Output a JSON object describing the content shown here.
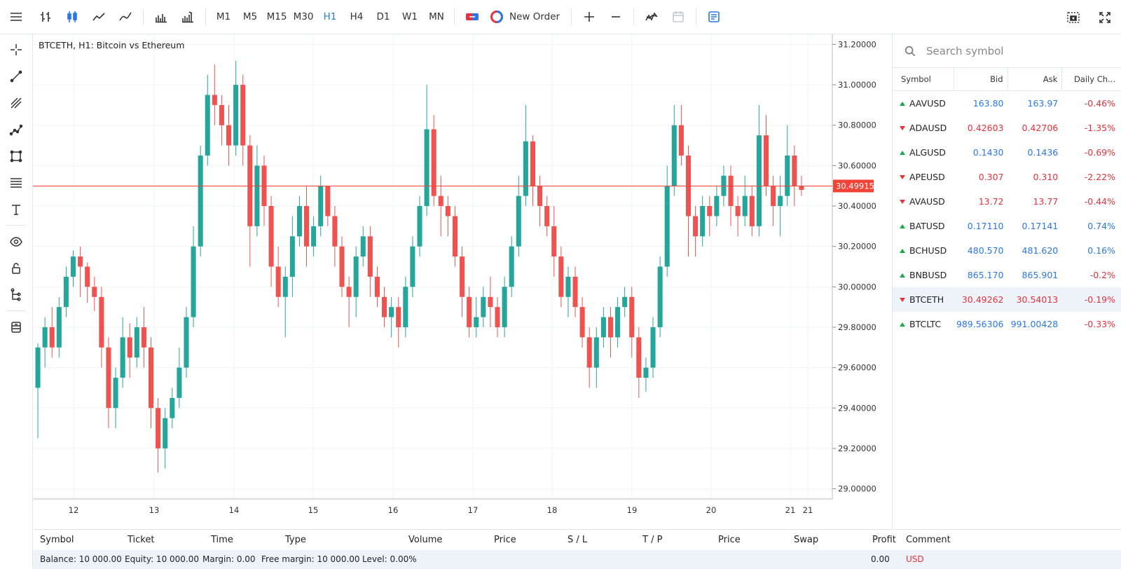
{
  "toolbar": {
    "timeframes": [
      "M1",
      "M5",
      "M15",
      "M30",
      "H1",
      "H4",
      "D1",
      "W1",
      "MN"
    ],
    "active_timeframe": "H1",
    "new_order_label": "New Order"
  },
  "chart": {
    "title": "BTCETH, H1: Bitcoin vs Ethereum",
    "current_price_label": "30.49915",
    "current_price": 30.49915
  },
  "chart_data": {
    "type": "candlestick",
    "title": "BTCETH, H1: Bitcoin vs Ethereum",
    "ylim": [
      28.95,
      31.25
    ],
    "y_ticks": [
      "31.20000",
      "31.00000",
      "30.80000",
      "30.60000",
      "30.40000",
      "30.20000",
      "30.00000",
      "29.80000",
      "29.60000",
      "29.40000",
      "29.20000",
      "29.00000"
    ],
    "x_ticks": [
      "12",
      "13",
      "14",
      "15",
      "16",
      "17",
      "18",
      "19",
      "20",
      "21",
      "21"
    ],
    "current_price": 30.49915,
    "candles": [
      [
        29.5,
        29.7,
        29.25,
        29.72
      ],
      [
        29.7,
        29.8,
        29.6,
        29.85
      ],
      [
        29.8,
        29.7,
        29.65,
        29.9
      ],
      [
        29.7,
        29.9,
        29.65,
        29.95
      ],
      [
        29.9,
        30.05,
        29.85,
        30.1
      ],
      [
        30.05,
        30.15,
        30.0,
        30.18
      ],
      [
        30.15,
        30.1,
        29.95,
        30.2
      ],
      [
        30.1,
        30.0,
        29.92,
        30.12
      ],
      [
        30.0,
        29.95,
        29.88,
        30.05
      ],
      [
        29.95,
        29.7,
        29.6,
        30.0
      ],
      [
        29.7,
        29.4,
        29.3,
        29.75
      ],
      [
        29.4,
        29.55,
        29.3,
        29.6
      ],
      [
        29.55,
        29.75,
        29.5,
        29.85
      ],
      [
        29.75,
        29.65,
        29.55,
        29.82
      ],
      [
        29.65,
        29.8,
        29.6,
        29.85
      ],
      [
        29.8,
        29.7,
        29.6,
        29.9
      ],
      [
        29.7,
        29.4,
        29.3,
        29.75
      ],
      [
        29.4,
        29.2,
        29.08,
        29.45
      ],
      [
        29.2,
        29.35,
        29.1,
        29.4
      ],
      [
        29.35,
        29.45,
        29.3,
        29.5
      ],
      [
        29.45,
        29.6,
        29.4,
        29.7
      ],
      [
        29.6,
        29.85,
        29.55,
        29.9
      ],
      [
        29.85,
        30.2,
        29.8,
        30.3
      ],
      [
        30.2,
        30.65,
        30.15,
        30.7
      ],
      [
        30.65,
        30.95,
        30.6,
        31.05
      ],
      [
        30.95,
        30.9,
        30.8,
        31.1
      ],
      [
        30.9,
        30.8,
        30.7,
        30.95
      ],
      [
        30.8,
        30.7,
        30.6,
        30.9
      ],
      [
        30.7,
        31.0,
        30.65,
        31.12
      ],
      [
        31.0,
        30.7,
        30.6,
        31.05
      ],
      [
        30.7,
        30.3,
        30.1,
        30.75
      ],
      [
        30.3,
        30.6,
        30.25,
        30.7
      ],
      [
        30.6,
        30.4,
        30.3,
        30.65
      ],
      [
        30.4,
        30.1,
        30.0,
        30.45
      ],
      [
        30.1,
        29.95,
        29.9,
        30.2
      ],
      [
        29.95,
        30.05,
        29.75,
        30.1
      ],
      [
        30.05,
        30.25,
        29.95,
        30.35
      ],
      [
        30.25,
        30.4,
        30.2,
        30.45
      ],
      [
        30.4,
        30.2,
        30.1,
        30.5
      ],
      [
        30.2,
        30.3,
        30.15,
        30.35
      ],
      [
        30.3,
        30.5,
        30.25,
        30.55
      ],
      [
        30.5,
        30.35,
        30.3,
        30.5
      ],
      [
        30.35,
        30.2,
        30.1,
        30.4
      ],
      [
        30.2,
        30.0,
        29.95,
        30.25
      ],
      [
        30.0,
        29.95,
        29.8,
        30.05
      ],
      [
        29.95,
        30.15,
        29.85,
        30.2
      ],
      [
        30.15,
        30.25,
        30.1,
        30.3
      ],
      [
        30.25,
        30.05,
        29.95,
        30.3
      ],
      [
        30.05,
        29.95,
        29.9,
        30.1
      ],
      [
        29.95,
        29.85,
        29.8,
        30.0
      ],
      [
        29.85,
        29.9,
        29.75,
        29.95
      ],
      [
        29.9,
        29.8,
        29.7,
        29.95
      ],
      [
        29.8,
        30.0,
        29.75,
        30.05
      ],
      [
        30.0,
        30.2,
        29.95,
        30.25
      ],
      [
        30.2,
        30.4,
        30.15,
        30.45
      ],
      [
        30.4,
        30.78,
        30.35,
        31.0
      ],
      [
        30.78,
        30.45,
        30.4,
        30.85
      ],
      [
        30.45,
        30.4,
        30.25,
        30.55
      ],
      [
        30.4,
        30.35,
        30.25,
        30.45
      ],
      [
        30.35,
        30.15,
        30.1,
        30.4
      ],
      [
        30.15,
        29.95,
        29.85,
        30.2
      ],
      [
        29.95,
        29.8,
        29.75,
        30.0
      ],
      [
        29.8,
        29.85,
        29.75,
        29.95
      ],
      [
        29.85,
        29.95,
        29.8,
        30.0
      ],
      [
        29.95,
        29.9,
        29.8,
        30.05
      ],
      [
        29.9,
        29.8,
        29.75,
        29.95
      ],
      [
        29.8,
        30.0,
        29.75,
        30.05
      ],
      [
        30.0,
        30.2,
        29.95,
        30.25
      ],
      [
        30.2,
        30.45,
        30.15,
        30.55
      ],
      [
        30.45,
        30.72,
        30.4,
        30.9
      ],
      [
        30.72,
        30.5,
        30.4,
        30.75
      ],
      [
        30.5,
        30.4,
        30.3,
        30.55
      ],
      [
        30.4,
        30.3,
        30.25,
        30.45
      ],
      [
        30.3,
        30.15,
        30.05,
        30.4
      ],
      [
        30.15,
        29.95,
        29.9,
        30.2
      ],
      [
        29.95,
        30.05,
        29.85,
        30.1
      ],
      [
        30.05,
        29.9,
        29.85,
        30.1
      ],
      [
        29.9,
        29.75,
        29.7,
        29.95
      ],
      [
        29.75,
        29.6,
        29.5,
        29.8
      ],
      [
        29.6,
        29.75,
        29.5,
        29.8
      ],
      [
        29.75,
        29.85,
        29.7,
        29.9
      ],
      [
        29.85,
        29.75,
        29.65,
        29.9
      ],
      [
        29.75,
        29.9,
        29.7,
        29.95
      ],
      [
        29.9,
        29.95,
        29.85,
        30.0
      ],
      [
        29.95,
        29.75,
        29.65,
        30.0
      ],
      [
        29.75,
        29.55,
        29.45,
        29.8
      ],
      [
        29.55,
        29.6,
        29.48,
        29.65
      ],
      [
        29.6,
        29.8,
        29.55,
        29.85
      ],
      [
        29.8,
        30.1,
        29.75,
        30.15
      ],
      [
        30.1,
        30.5,
        30.05,
        30.6
      ],
      [
        30.5,
        30.8,
        30.45,
        30.9
      ],
      [
        30.8,
        30.65,
        30.6,
        30.9
      ],
      [
        30.65,
        30.35,
        30.15,
        30.7
      ],
      [
        30.35,
        30.25,
        30.15,
        30.4
      ],
      [
        30.25,
        30.4,
        30.2,
        30.45
      ],
      [
        30.4,
        30.35,
        30.25,
        30.45
      ],
      [
        30.35,
        30.45,
        30.3,
        30.5
      ],
      [
        30.45,
        30.55,
        30.4,
        30.6
      ],
      [
        30.55,
        30.4,
        30.3,
        30.6
      ],
      [
        30.4,
        30.35,
        30.25,
        30.45
      ],
      [
        30.35,
        30.45,
        30.3,
        30.55
      ],
      [
        30.45,
        30.3,
        30.25,
        30.5
      ],
      [
        30.3,
        30.75,
        30.25,
        30.9
      ],
      [
        30.75,
        30.5,
        30.45,
        30.85
      ],
      [
        30.5,
        30.4,
        30.3,
        30.55
      ],
      [
        30.4,
        30.45,
        30.25,
        30.55
      ],
      [
        30.45,
        30.65,
        30.4,
        30.8
      ],
      [
        30.65,
        30.5,
        30.4,
        30.7
      ],
      [
        30.5,
        30.48,
        30.45,
        30.55
      ]
    ]
  },
  "market_watch": {
    "search_placeholder": "Search symbol",
    "headers": {
      "symbol": "Symbol",
      "bid": "Bid",
      "ask": "Ask",
      "change": "Daily Ch..."
    },
    "rows": [
      {
        "symbol": "AAVUSD",
        "bid": "163.80",
        "ask": "163.97",
        "change": "-0.46%",
        "dir": "up",
        "color": "blue"
      },
      {
        "symbol": "ADAUSD",
        "bid": "0.42603",
        "ask": "0.42706",
        "change": "-1.35%",
        "dir": "down",
        "color": "red"
      },
      {
        "symbol": "ALGUSD",
        "bid": "0.1430",
        "ask": "0.1436",
        "change": "-0.69%",
        "dir": "up",
        "color": "blue"
      },
      {
        "symbol": "APEUSD",
        "bid": "0.307",
        "ask": "0.310",
        "change": "-2.22%",
        "dir": "down",
        "color": "red"
      },
      {
        "symbol": "AVAUSD",
        "bid": "13.72",
        "ask": "13.77",
        "change": "-0.44%",
        "dir": "down",
        "color": "red"
      },
      {
        "symbol": "BATUSD",
        "bid": "0.17110",
        "ask": "0.17141",
        "change": "0.74%",
        "dir": "up",
        "color": "blue"
      },
      {
        "symbol": "BCHUSD",
        "bid": "480.570",
        "ask": "481.620",
        "change": "0.16%",
        "dir": "up",
        "color": "blue"
      },
      {
        "symbol": "BNBUSD",
        "bid": "865.170",
        "ask": "865.901",
        "change": "-0.2%",
        "dir": "up",
        "color": "blue"
      },
      {
        "symbol": "BTCETH",
        "bid": "30.49262",
        "ask": "30.54013",
        "change": "-0.19%",
        "dir": "down",
        "color": "red",
        "selected": true
      },
      {
        "symbol": "BTCLTC",
        "bid": "989.56306",
        "ask": "991.00428",
        "change": "-0.33%",
        "dir": "up",
        "color": "blue"
      }
    ]
  },
  "positions": {
    "headers": [
      "Symbol",
      "Ticket",
      "Time",
      "Type",
      "Volume",
      "Price",
      "S / L",
      "T / P",
      "Price",
      "Swap",
      "Profit",
      "Comment"
    ],
    "balance": "Balance: 10 000.00",
    "equity": "Equity: 10 000.00",
    "margin": "Margin: 0.00",
    "free_margin": "Free margin: 10 000.00",
    "level": "Level: 0.00%",
    "profit_total": "0.00",
    "currency": "USD"
  },
  "colors": {
    "up": "#26a69a",
    "down": "#ef5350",
    "accent": "#2a78e4",
    "price_line": "#f44336"
  }
}
